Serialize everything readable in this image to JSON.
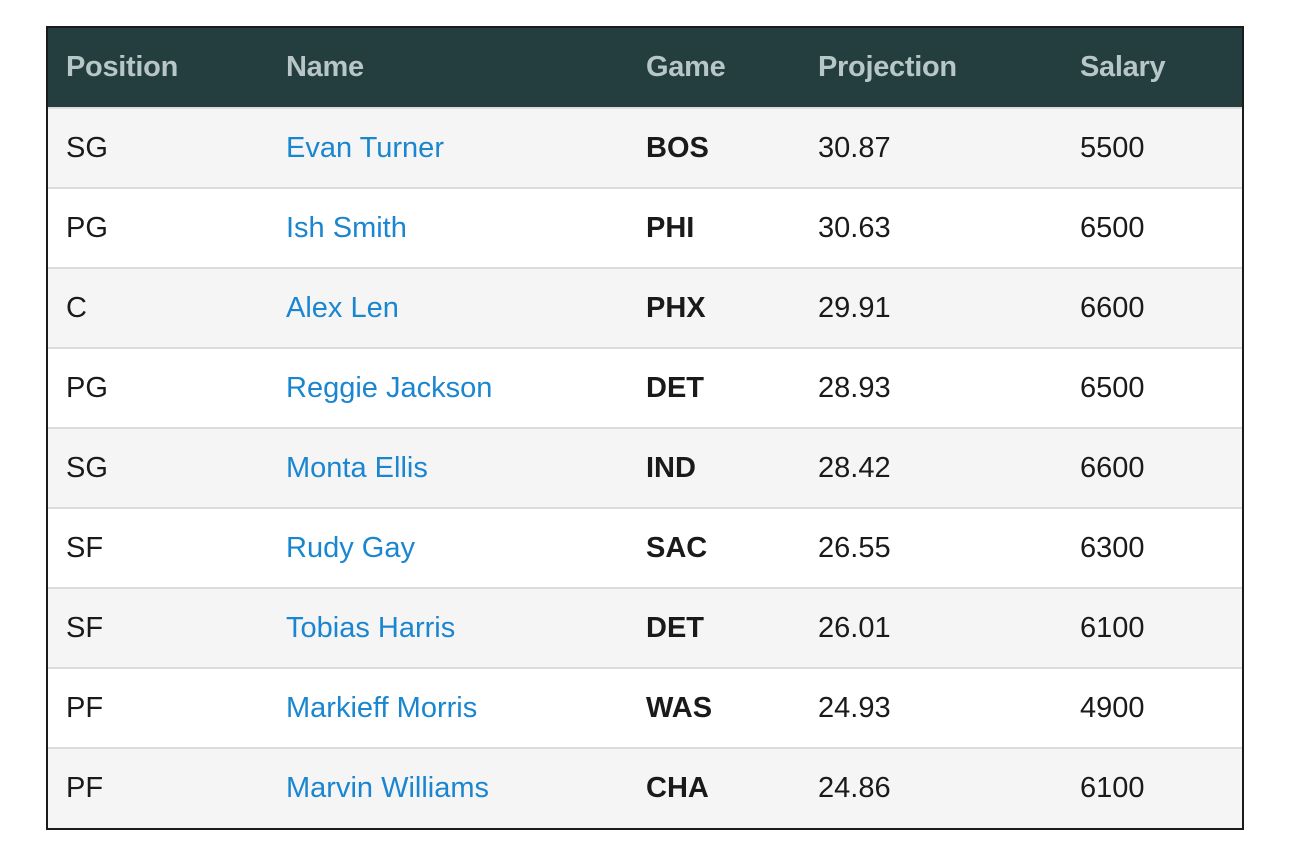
{
  "table": {
    "headers": [
      "Position",
      "Name",
      "Game",
      "Projection",
      "Salary"
    ],
    "rows": [
      {
        "position": "SG",
        "name": "Evan Turner",
        "game": "BOS",
        "projection": "30.87",
        "salary": "5500"
      },
      {
        "position": "PG",
        "name": "Ish Smith",
        "game": "PHI",
        "projection": "30.63",
        "salary": "6500"
      },
      {
        "position": "C",
        "name": "Alex Len",
        "game": "PHX",
        "projection": "29.91",
        "salary": "6600"
      },
      {
        "position": "PG",
        "name": "Reggie Jackson",
        "game": "DET",
        "projection": "28.93",
        "salary": "6500"
      },
      {
        "position": "SG",
        "name": "Monta Ellis",
        "game": "IND",
        "projection": "28.42",
        "salary": "6600"
      },
      {
        "position": "SF",
        "name": "Rudy Gay",
        "game": "SAC",
        "projection": "26.55",
        "salary": "6300"
      },
      {
        "position": "SF",
        "name": "Tobias Harris",
        "game": "DET",
        "projection": "26.01",
        "salary": "6100"
      },
      {
        "position": "PF",
        "name": "Markieff Morris",
        "game": "WAS",
        "projection": "24.93",
        "salary": "4900"
      },
      {
        "position": "PF",
        "name": "Marvin Williams",
        "game": "CHA",
        "projection": "24.86",
        "salary": "6100"
      }
    ]
  },
  "colors": {
    "header_bg": "#243d3e",
    "header_text": "#b7c6c6",
    "link": "#1a86d0",
    "row_odd": "#f5f5f5",
    "row_even": "#ffffff"
  }
}
